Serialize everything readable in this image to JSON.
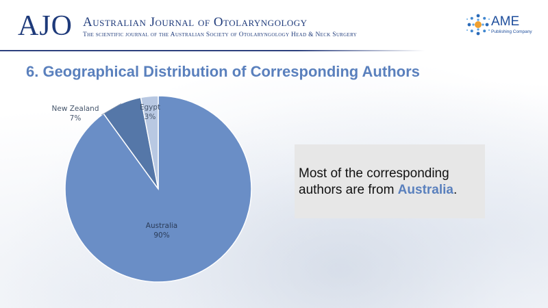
{
  "header": {
    "logo_text": "AJO",
    "journal_title": "Australian Journal of Otolaryngology",
    "journal_subtitle": "The scientific journal of the Australian Society of Otolaryngology Head & Neck Surgery",
    "publisher_logo_text": "AME",
    "publisher_logo_subtext": "Publishing Company",
    "brand_color": "#1e3a7a"
  },
  "slide": {
    "title": "6. Geographical Distribution of Corresponding Authors",
    "title_color": "#5a80bd"
  },
  "callout": {
    "text_before": "Most of the corresponding authors are from ",
    "highlight": "Australia",
    "text_after": "."
  },
  "chart_data": {
    "type": "pie",
    "slices": [
      {
        "label": "Australia",
        "percent_label": "90%",
        "value": 90,
        "color": "#6a8ec6"
      },
      {
        "label": "New Zealand",
        "percent_label": "7%",
        "value": 7,
        "color": "#5577a8"
      },
      {
        "label": "Egypt",
        "percent_label": "3%",
        "value": 3,
        "color": "#b8c8e2"
      }
    ],
    "start": "top",
    "direction": "clockwise",
    "legend": "none",
    "labels": "data-labels"
  }
}
